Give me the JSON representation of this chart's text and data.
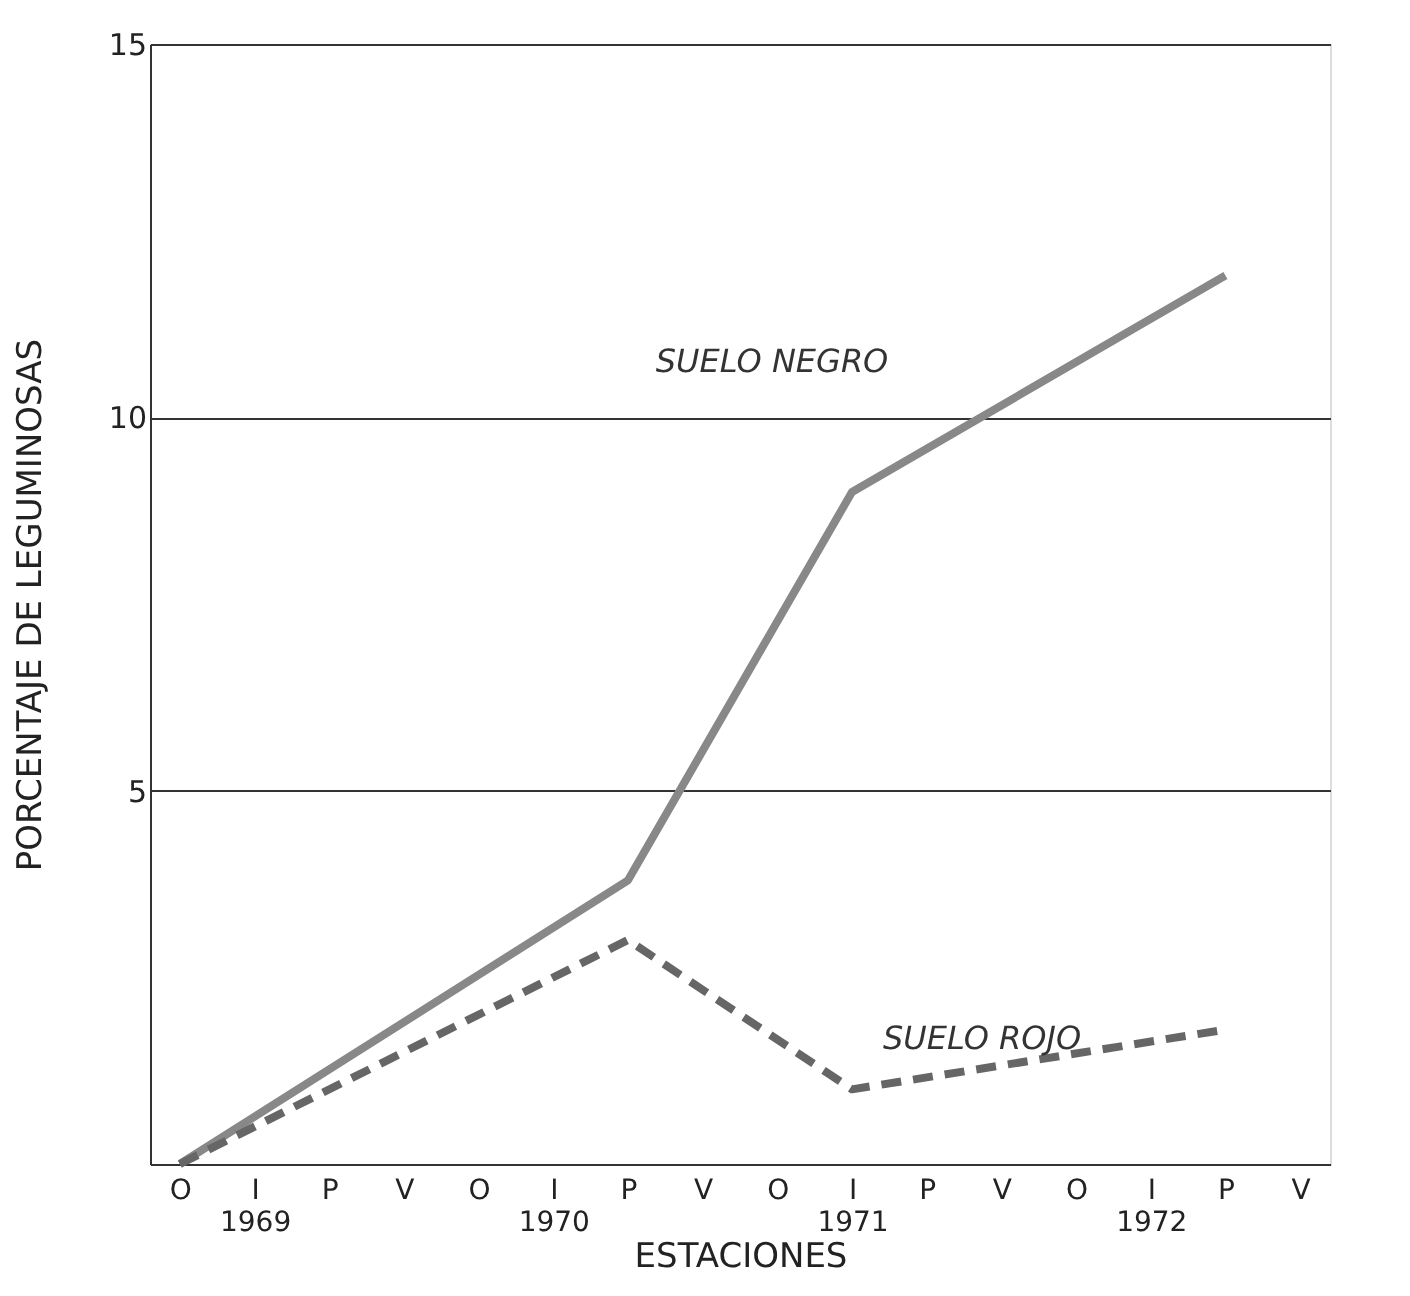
{
  "chart_data": {
    "type": "line",
    "xlabel": "ESTACIONES",
    "ylabel": "PORCENTAJE DE LEGUMINOSAS",
    "categories": [
      "O",
      "I\n1969",
      "P",
      "V",
      "O",
      "I\n1970",
      "P",
      "V",
      "O",
      "I\n1971",
      "P",
      "V",
      "O",
      "I\n1972",
      "P",
      "V"
    ],
    "ylim": [
      0,
      15
    ],
    "yticks": [
      5,
      10,
      15
    ],
    "grid": "y",
    "marker": "none",
    "series": [
      {
        "name": "SUELO NEGRO",
        "color": "#888888",
        "line_style": "solid",
        "values": [
          0,
          null,
          null,
          null,
          null,
          null,
          3.8,
          null,
          null,
          9.0,
          null,
          null,
          null,
          null,
          11.9,
          null
        ]
      },
      {
        "name": "SUELO ROJO",
        "color": "#666666",
        "line_style": "dashed",
        "values": [
          0,
          null,
          null,
          null,
          null,
          null,
          3.0,
          null,
          null,
          1.0,
          null,
          null,
          null,
          null,
          1.8,
          null
        ]
      }
    ]
  }
}
